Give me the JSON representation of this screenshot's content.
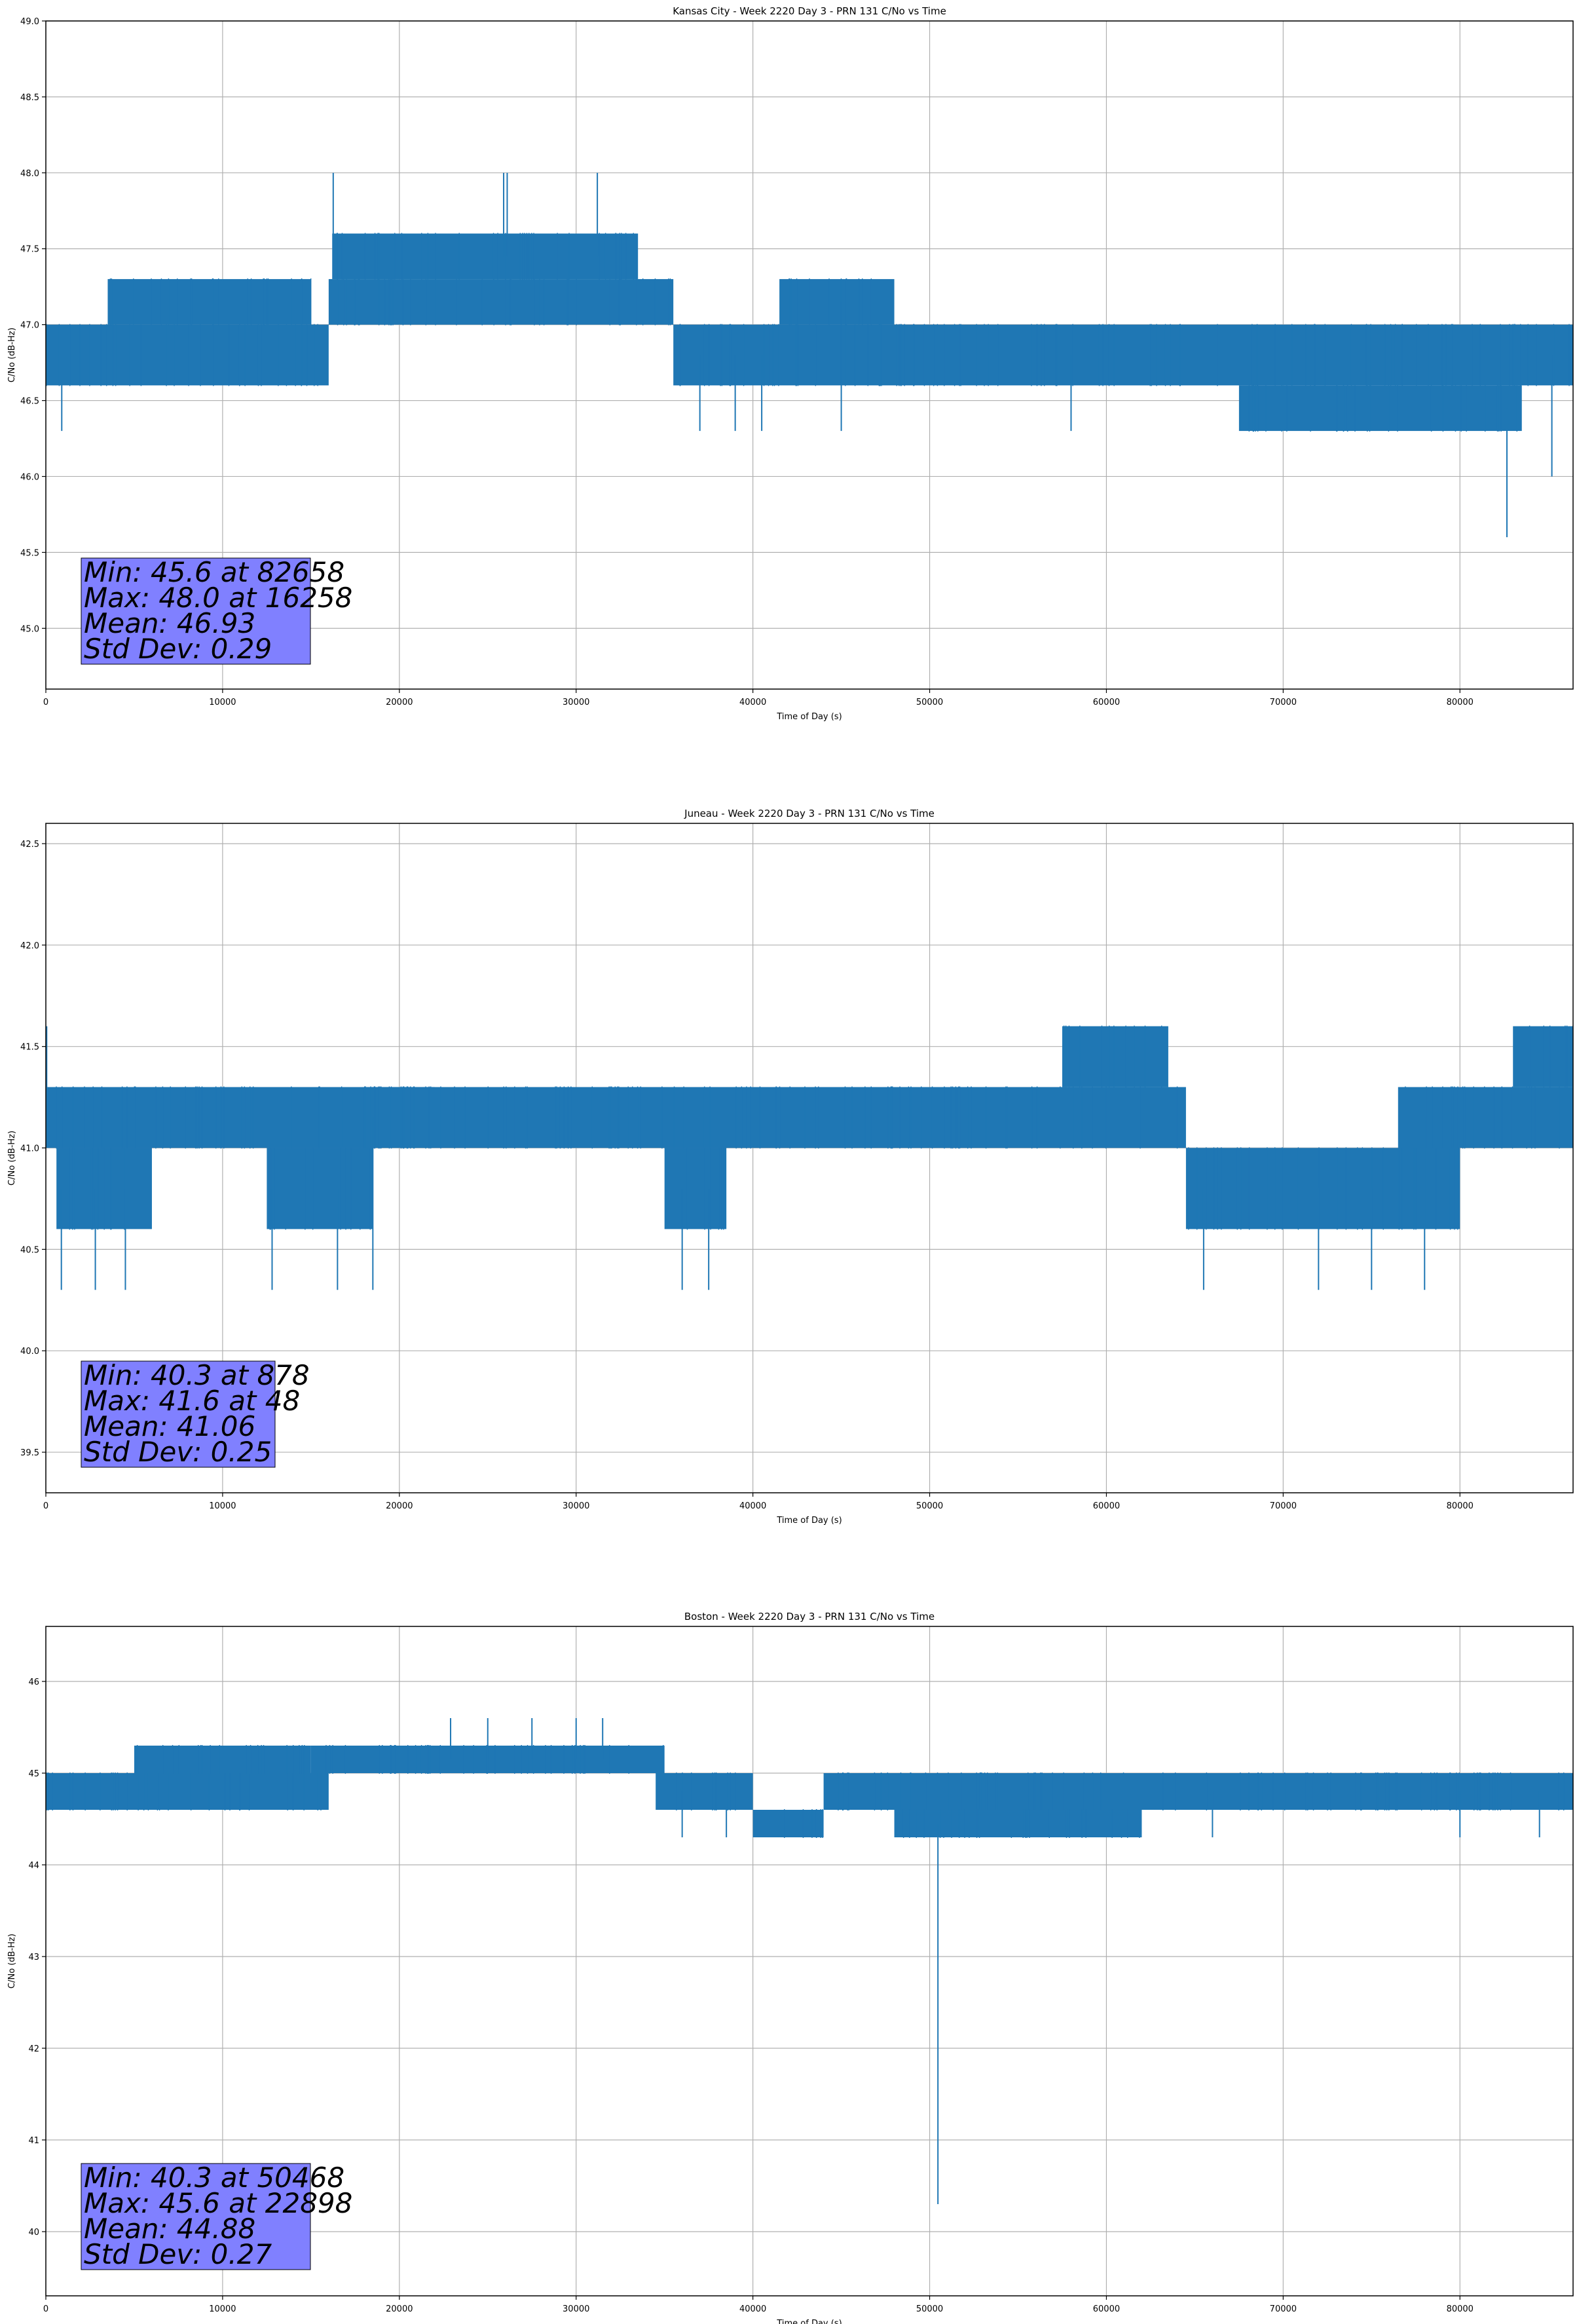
{
  "figure": {
    "colors": {
      "line": "#1f77b4",
      "grid": "#b0b0b0",
      "stats_box_fill": "#8080ff",
      "stats_box_edge": "#000000",
      "axes": "#000000"
    }
  },
  "chart_data": [
    {
      "type": "line",
      "title": "Kansas City - Week 2220 Day 3 - PRN 131 C/No vs Time",
      "xlabel": "Time of Day (s)",
      "ylabel": "C/No (dB-Hz)",
      "xlim": [
        0,
        86400
      ],
      "ylim": [
        44.6,
        49.0
      ],
      "xticks": [
        0,
        10000,
        20000,
        30000,
        40000,
        50000,
        60000,
        70000,
        80000
      ],
      "yticks": [
        45.0,
        45.5,
        46.0,
        46.5,
        47.0,
        47.5,
        48.0,
        48.5,
        49.0
      ],
      "ytick_decimals": 1,
      "grid": true,
      "stats": [
        "Min: 45.6 at 82658",
        "Max: 48.0 at 16258",
        "Mean: 46.93",
        "Std Dev: 0.29"
      ],
      "segments": [
        {
          "x": [
            0,
            16000
          ],
          "low": 46.6,
          "high": 47.0
        },
        {
          "x": [
            3500,
            15000
          ],
          "low": 47.0,
          "high": 47.3
        },
        {
          "x": [
            16000,
            35500
          ],
          "low": 47.0,
          "high": 47.3
        },
        {
          "x": [
            16200,
            33500
          ],
          "low": 47.3,
          "high": 47.6
        },
        {
          "x": [
            35500,
            86400
          ],
          "low": 46.6,
          "high": 47.0
        },
        {
          "x": [
            41500,
            48000
          ],
          "low": 47.0,
          "high": 47.3
        },
        {
          "x": [
            67500,
            83500
          ],
          "low": 46.3,
          "high": 46.6
        }
      ],
      "spikes": [
        [
          900,
          46.3
        ],
        [
          16258,
          48.0
        ],
        [
          25900,
          48.0
        ],
        [
          26100,
          48.0
        ],
        [
          31200,
          48.0
        ],
        [
          37000,
          46.3
        ],
        [
          39000,
          46.3
        ],
        [
          40500,
          46.3
        ],
        [
          45000,
          46.3
        ],
        [
          58000,
          46.3
        ],
        [
          82658,
          45.6
        ],
        [
          85200,
          46.0
        ]
      ]
    },
    {
      "type": "line",
      "title": "Juneau - Week 2220 Day 3 - PRN 131 C/No vs Time",
      "xlabel": "Time of Day (s)",
      "ylabel": "C/No (dB-Hz)",
      "xlim": [
        0,
        86400
      ],
      "ylim": [
        39.3,
        42.6
      ],
      "xticks": [
        0,
        10000,
        20000,
        30000,
        40000,
        50000,
        60000,
        70000,
        80000
      ],
      "yticks": [
        39.5,
        40.0,
        40.5,
        41.0,
        41.5,
        42.0,
        42.5
      ],
      "ytick_decimals": 1,
      "grid": true,
      "stats": [
        "Min: 40.3 at 878",
        "Max: 41.6 at 48",
        "Mean: 41.06",
        "Std Dev: 0.25"
      ],
      "segments": [
        {
          "x": [
            0,
            22000
          ],
          "low": 41.0,
          "high": 41.3
        },
        {
          "x": [
            600,
            6000
          ],
          "low": 40.6,
          "high": 41.0
        },
        {
          "x": [
            12500,
            18500
          ],
          "low": 40.6,
          "high": 41.0
        },
        {
          "x": [
            18000,
            64500
          ],
          "low": 41.0,
          "high": 41.3
        },
        {
          "x": [
            35000,
            38500
          ],
          "low": 40.6,
          "high": 41.0
        },
        {
          "x": [
            57500,
            63500
          ],
          "low": 41.3,
          "high": 41.6
        },
        {
          "x": [
            64500,
            80000
          ],
          "low": 40.6,
          "high": 41.0
        },
        {
          "x": [
            76500,
            86400
          ],
          "low": 41.0,
          "high": 41.3
        },
        {
          "x": [
            83000,
            86400
          ],
          "low": 41.3,
          "high": 41.6
        }
      ],
      "spikes": [
        [
          48,
          41.6
        ],
        [
          878,
          40.3
        ],
        [
          2800,
          40.3
        ],
        [
          4500,
          40.3
        ],
        [
          12800,
          40.3
        ],
        [
          16500,
          40.3
        ],
        [
          18500,
          40.3
        ],
        [
          36000,
          40.3
        ],
        [
          37500,
          40.3
        ],
        [
          65500,
          40.3
        ],
        [
          72000,
          40.3
        ],
        [
          75000,
          40.3
        ],
        [
          78000,
          40.3
        ]
      ]
    },
    {
      "type": "line",
      "title": "Boston - Week 2220 Day 3 - PRN 131 C/No vs Time",
      "xlabel": "Time of Day (s)",
      "ylabel": "C/No (dB-Hz)",
      "xlim": [
        0,
        86400
      ],
      "ylim": [
        39.3,
        46.6
      ],
      "xticks": [
        0,
        10000,
        20000,
        30000,
        40000,
        50000,
        60000,
        70000,
        80000
      ],
      "yticks": [
        40,
        41,
        42,
        43,
        44,
        45,
        46
      ],
      "ytick_decimals": 0,
      "grid": true,
      "stats": [
        "Min: 40.3 at 50468",
        "Max: 45.6 at 22898",
        "Mean: 44.88",
        "Std Dev: 0.27"
      ],
      "segments": [
        {
          "x": [
            0,
            16000
          ],
          "low": 44.6,
          "high": 45.0
        },
        {
          "x": [
            5000,
            15000
          ],
          "low": 45.0,
          "high": 45.3
        },
        {
          "x": [
            15000,
            35000
          ],
          "low": 45.0,
          "high": 45.3
        },
        {
          "x": [
            34500,
            40000
          ],
          "low": 44.6,
          "high": 45.0
        },
        {
          "x": [
            40000,
            44000
          ],
          "low": 44.3,
          "high": 44.6
        },
        {
          "x": [
            44000,
            86400
          ],
          "low": 44.6,
          "high": 45.0
        },
        {
          "x": [
            48000,
            62000
          ],
          "low": 44.3,
          "high": 44.6
        }
      ],
      "spikes": [
        [
          22898,
          45.6
        ],
        [
          25000,
          45.6
        ],
        [
          27500,
          45.6
        ],
        [
          30000,
          45.6
        ],
        [
          31500,
          45.6
        ],
        [
          36000,
          44.3
        ],
        [
          38500,
          44.3
        ],
        [
          50468,
          40.3
        ],
        [
          66000,
          44.3
        ],
        [
          80000,
          44.3
        ],
        [
          84500,
          44.3
        ]
      ]
    }
  ]
}
